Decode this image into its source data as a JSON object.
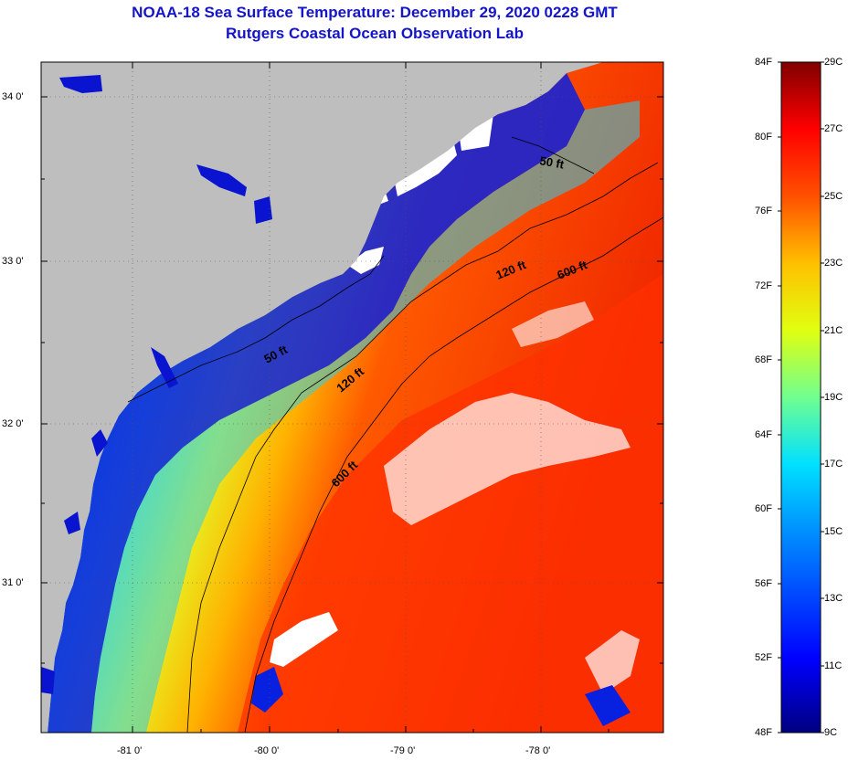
{
  "title": {
    "line1": "NOAA-18 Sea Surface Temperature:  December 29, 2020 0228 GMT",
    "line2": "Rutgers Coastal Ocean Observation Lab"
  },
  "axes": {
    "lat_labels": [
      "34 0'",
      "33 0'",
      "32 0'",
      "31 0'"
    ],
    "lon_labels": [
      "-81 0'",
      "-80 0'",
      "-79 0'",
      "-78 0'"
    ]
  },
  "contours": {
    "c50": "50 ft",
    "c120": "120 ft",
    "c600": "600 ft"
  },
  "colorbar": {
    "fahrenheit": [
      "84F",
      "80F",
      "76F",
      "72F",
      "68F",
      "64F",
      "60F",
      "56F",
      "52F",
      "48F"
    ],
    "celsius": [
      "29C",
      "27C",
      "25C",
      "23C",
      "21C",
      "19C",
      "17C",
      "15C",
      "13C",
      "11C",
      "9C"
    ]
  },
  "colors": {
    "land": "#bebebe",
    "title": "#1414c8",
    "cold": "#0000a0",
    "warm": "#ff3000"
  }
}
